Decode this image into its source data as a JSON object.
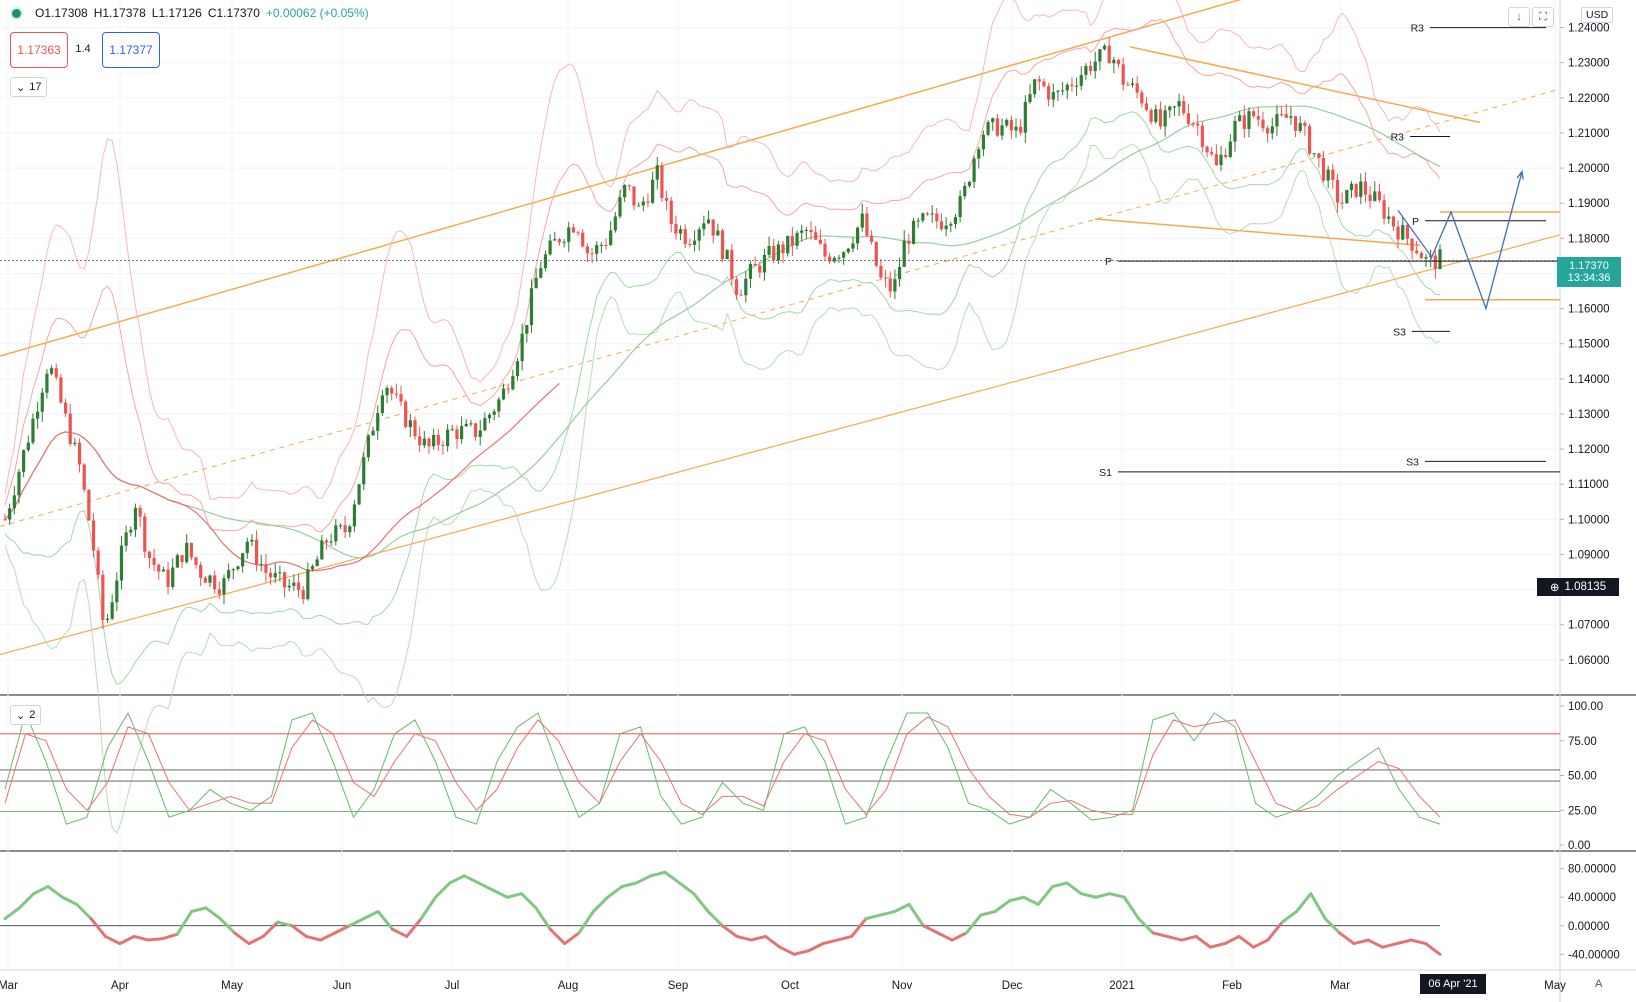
{
  "header": {
    "open": "O1.17308",
    "high": "H1.17378",
    "low": "L1.17126",
    "close": "C1.17370",
    "change": "+0.00062 (+0.05%)",
    "bid": "1.17363",
    "spread": "1.4",
    "ask": "1.17377",
    "indicator_count": "17",
    "osc_count": "2",
    "currency": "USD"
  },
  "labels": {
    "last_price": "1.17370",
    "countdown": "13:34:36",
    "crosshair_price": "1.08135",
    "crosshair_date": "06 Apr '21",
    "auto": "A"
  },
  "icons": {
    "down_arrow": "↓",
    "maximize": "⛶",
    "chevron": "⌄",
    "plus_circle": "⊕"
  },
  "colors": {
    "up": "#2e7d32",
    "down": "#ef5350",
    "channel": "#f7a94b",
    "bb_upper": "#f4a6a6",
    "bb_lower": "#a5d6a7",
    "ma": "#9ccc9e",
    "ma_red": "#e57373",
    "macd_up": "#81c784",
    "macd_down": "#e57373",
    "arrow": "#3f6fb5"
  },
  "chart_data": [
    {
      "type": "candlestick",
      "title": "",
      "xlabel": "",
      "ylabel": "",
      "x_ticks": [
        "Mar",
        "Apr",
        "May",
        "Jun",
        "Jul",
        "Aug",
        "Sep",
        "Oct",
        "Nov",
        "Dec",
        "2021",
        "Feb",
        "Mar",
        "May"
      ],
      "y_ticks": [
        "1.24000",
        "1.23000",
        "1.22000",
        "1.21000",
        "1.20000",
        "1.19000",
        "1.18000",
        "1.17000",
        "1.16000",
        "1.15000",
        "1.14000",
        "1.13000",
        "1.12000",
        "1.11000",
        "1.10000",
        "1.09000",
        "1.08000",
        "1.07000",
        "1.06000"
      ],
      "ylim": [
        1.05,
        1.245
      ],
      "price_path": [
        [
          0,
          1.1
        ],
        [
          8,
          1.125
        ],
        [
          14,
          1.145
        ],
        [
          19,
          1.13
        ],
        [
          24,
          1.115
        ],
        [
          28,
          1.095
        ],
        [
          32,
          1.068
        ],
        [
          37,
          1.088
        ],
        [
          42,
          1.105
        ],
        [
          46,
          1.09
        ],
        [
          52,
          1.082
        ],
        [
          58,
          1.092
        ],
        [
          63,
          1.085
        ],
        [
          70,
          1.081
        ],
        [
          78,
          1.094
        ],
        [
          84,
          1.085
        ],
        [
          90,
          1.081
        ],
        [
          96,
          1.08
        ],
        [
          104,
          1.095
        ],
        [
          110,
          1.097
        ],
        [
          118,
          1.125
        ],
        [
          122,
          1.14
        ],
        [
          128,
          1.13
        ],
        [
          136,
          1.12
        ],
        [
          144,
          1.125
        ],
        [
          152,
          1.125
        ],
        [
          160,
          1.135
        ],
        [
          166,
          1.15
        ],
        [
          172,
          1.172
        ],
        [
          178,
          1.18
        ],
        [
          184,
          1.185
        ],
        [
          188,
          1.175
        ],
        [
          194,
          1.18
        ],
        [
          200,
          1.195
        ],
        [
          204,
          1.188
        ],
        [
          210,
          1.198
        ],
        [
          214,
          1.185
        ],
        [
          220,
          1.18
        ],
        [
          226,
          1.187
        ],
        [
          232,
          1.175
        ],
        [
          236,
          1.165
        ],
        [
          240,
          1.17
        ],
        [
          246,
          1.175
        ],
        [
          252,
          1.178
        ],
        [
          258,
          1.182
        ],
        [
          264,
          1.175
        ],
        [
          270,
          1.177
        ],
        [
          276,
          1.185
        ],
        [
          282,
          1.168
        ],
        [
          286,
          1.165
        ],
        [
          290,
          1.18
        ],
        [
          296,
          1.185
        ],
        [
          302,
          1.185
        ],
        [
          308,
          1.19
        ],
        [
          314,
          1.21
        ],
        [
          320,
          1.212
        ],
        [
          326,
          1.21
        ],
        [
          332,
          1.225
        ],
        [
          338,
          1.22
        ],
        [
          344,
          1.225
        ],
        [
          350,
          1.23
        ],
        [
          356,
          1.233
        ],
        [
          360,
          1.225
        ],
        [
          366,
          1.22
        ],
        [
          372,
          1.212
        ],
        [
          378,
          1.218
        ],
        [
          384,
          1.212
        ],
        [
          390,
          1.2
        ],
        [
          396,
          1.212
        ],
        [
          402,
          1.215
        ],
        [
          408,
          1.212
        ],
        [
          414,
          1.215
        ],
        [
          418,
          1.21
        ],
        [
          424,
          1.2
        ],
        [
          430,
          1.19
        ],
        [
          436,
          1.195
        ],
        [
          442,
          1.19
        ],
        [
          448,
          1.183
        ],
        [
          454,
          1.178
        ],
        [
          458,
          1.173
        ],
        [
          462,
          1.174
        ]
      ],
      "levels": [
        {
          "name": "R3",
          "value": 1.24
        },
        {
          "name": "R3",
          "value": 1.209
        },
        {
          "name": "P",
          "value": 1.185
        },
        {
          "name": "P",
          "value": 1.1735
        },
        {
          "name": "S3",
          "value": 1.1535
        },
        {
          "name": "S3",
          "value": 1.1165
        },
        {
          "name": "S1",
          "value": 1.1135
        }
      ],
      "last": 1.1737,
      "crosshair": 1.08135
    },
    {
      "type": "line",
      "title": "",
      "y_ticks": [
        "100.00",
        "75.00",
        "50.00",
        "25.00",
        "0.00"
      ],
      "ylim": [
        0,
        100
      ],
      "levels": [
        80,
        54,
        46,
        24
      ],
      "series": [
        {
          "values": [
            40,
            95,
            60,
            15,
            20,
            70,
            95,
            60,
            20,
            25,
            40,
            30,
            25,
            35,
            90,
            95,
            60,
            20,
            40,
            80,
            90,
            60,
            20,
            15,
            60,
            85,
            95,
            55,
            20,
            30,
            80,
            85,
            35,
            15,
            20,
            45,
            30,
            25,
            80,
            85,
            60,
            15,
            20,
            60,
            95,
            95,
            70,
            30,
            25,
            15,
            20,
            40,
            30,
            18,
            20,
            25,
            90,
            95,
            75,
            95,
            85,
            30,
            20,
            25,
            35,
            50,
            60,
            70,
            40,
            20,
            15
          ]
        },
        {
          "values": [
            30,
            80,
            75,
            40,
            25,
            45,
            85,
            80,
            45,
            25,
            30,
            35,
            30,
            30,
            70,
            90,
            80,
            45,
            35,
            60,
            80,
            75,
            45,
            25,
            40,
            70,
            90,
            75,
            45,
            30,
            60,
            80,
            60,
            30,
            22,
            35,
            35,
            28,
            60,
            80,
            75,
            40,
            22,
            40,
            80,
            92,
            85,
            55,
            35,
            22,
            20,
            30,
            32,
            25,
            22,
            22,
            65,
            90,
            85,
            88,
            90,
            60,
            30,
            24,
            28,
            40,
            50,
            60,
            55,
            35,
            20
          ]
        }
      ]
    },
    {
      "type": "line",
      "title": "",
      "y_ticks": [
        "80.00000",
        "40.00000",
        "0.00000",
        "-40.00000"
      ],
      "ylim": [
        -55,
        95
      ],
      "values": [
        10,
        25,
        45,
        55,
        40,
        30,
        10,
        -15,
        -25,
        -15,
        -20,
        -18,
        -12,
        20,
        25,
        10,
        -10,
        -25,
        -15,
        5,
        0,
        -15,
        -20,
        -10,
        0,
        10,
        20,
        -5,
        -15,
        10,
        40,
        60,
        70,
        60,
        50,
        40,
        45,
        25,
        -5,
        -25,
        -10,
        20,
        40,
        55,
        60,
        70,
        75,
        60,
        45,
        20,
        0,
        -15,
        -20,
        -15,
        -30,
        -40,
        -35,
        -25,
        -20,
        -15,
        10,
        15,
        20,
        30,
        0,
        -10,
        -20,
        -10,
        15,
        20,
        35,
        40,
        30,
        55,
        60,
        45,
        40,
        45,
        40,
        10,
        -10,
        -15,
        -20,
        -15,
        -30,
        -25,
        -15,
        -30,
        -20,
        5,
        20,
        45,
        10,
        -10,
        -25,
        -20,
        -30,
        -25,
        -20,
        -25,
        -40
      ]
    }
  ]
}
